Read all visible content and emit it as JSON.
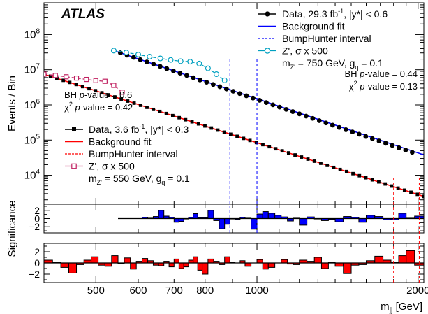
{
  "experiment_label": "ATLAS",
  "colors": {
    "high_mass": "#0000ff",
    "high_mass_signal": "#00a0c0",
    "low_mass": "#ff0000",
    "low_mass_signal": "#c02060",
    "significance_blue": "#0000ff",
    "significance_red": "#ff0000"
  },
  "chart_data": {
    "type": "scatter",
    "xlabel": "m_jj [GeV]",
    "x_scale": "log",
    "xlim": [
      400,
      2050
    ],
    "x_ticks": [
      500,
      600,
      700,
      800,
      900,
      1000,
      2000
    ],
    "x_tick_labels": [
      "500",
      "600",
      "700",
      "800",
      "",
      "1000",
      "2000"
    ],
    "main": {
      "ylabel": "Events / Bin",
      "y_scale": "log",
      "ylim": [
        1500,
        800000000
      ],
      "y_ticks": [
        10000,
        100000,
        1000000,
        10000000,
        100000000
      ],
      "y_tick_labels": [
        {
          "base": "10",
          "exp": "4"
        },
        {
          "base": "10",
          "exp": "5"
        },
        {
          "base": "10",
          "exp": "6"
        },
        {
          "base": "10",
          "exp": "7"
        },
        {
          "base": "10",
          "exp": "8"
        }
      ],
      "series": [
        {
          "name": "Data, 29.3 fb⁻¹, |y*| < 0.6",
          "kind": "data",
          "marker": "circle",
          "color": "#000000",
          "x": [
            540,
            1950
          ],
          "y": [
            35000000,
            45000
          ],
          "n_points": 46
        },
        {
          "name": "Background fit",
          "kind": "fit",
          "color": "#0000ff",
          "x": [
            540,
            2050
          ],
          "y": [
            35000000,
            38000
          ]
        },
        {
          "name": "BumpHunter interval",
          "kind": "interval",
          "color": "#0000ff",
          "x": [
            890,
            1000
          ]
        },
        {
          "name": "Z', σ x 500",
          "kind": "signal",
          "marker": "open-circle",
          "color": "#00a0c0",
          "x": [
            540,
            570,
            600,
            630,
            660,
            690,
            720,
            750,
            780,
            810,
            840,
            870
          ],
          "y": [
            35000000,
            31000000,
            27000000,
            23500000,
            21000000,
            19000000,
            17500000,
            17000000,
            15000000,
            11000000,
            7500000,
            5000000
          ]
        },
        {
          "name": "Data, 3.6 fb⁻¹, |y*| < 0.3",
          "kind": "data",
          "marker": "square",
          "color": "#000000",
          "x": [
            400,
            2050
          ],
          "y": [
            7500000,
            2500
          ],
          "n_points": 60
        },
        {
          "name": "Background fit",
          "kind": "fit",
          "color": "#ff0000",
          "x": [
            400,
            2050
          ],
          "y": [
            7500000,
            2500
          ]
        },
        {
          "name": "BumpHunter interval",
          "kind": "interval",
          "color": "#ff0000",
          "x": [
            1800,
            2010
          ]
        },
        {
          "name": "Z', σ x 500",
          "kind": "signal",
          "marker": "open-square",
          "color": "#c02060",
          "x": [
            400,
            420,
            440,
            460,
            480,
            500,
            520,
            540,
            560
          ],
          "y": [
            7500000,
            6900000,
            6300000,
            5800000,
            5300000,
            4900000,
            4700000,
            3600000,
            2300000
          ]
        }
      ],
      "legends": [
        {
          "position": "top-right",
          "entries": [
            {
              "style": "data-circle",
              "color": "#000000",
              "text": "Data, 29.3 fb",
              "sup": "-1",
              "after": ", |y*| < 0.6"
            },
            {
              "style": "line",
              "color": "#0000ff",
              "text": "Background fit"
            },
            {
              "style": "dashed",
              "color": "#0000ff",
              "text": "BumpHunter interval"
            },
            {
              "style": "open-circle",
              "color": "#00a0c0",
              "text": "Z', σ x 500"
            },
            {
              "style": "none",
              "text": "m",
              "sub": "Z'",
              "after": " = 750 GeV, g",
              "sub2": "q",
              "after2": " = 0.1"
            }
          ],
          "pvalues": {
            "bh": "= 0.44",
            "chi2": "= 0.13"
          }
        },
        {
          "position": "bottom-left",
          "entries": [
            {
              "style": "data-square",
              "color": "#000000",
              "text": "Data, 3.6 fb",
              "sup": "-1",
              "after": ", |y*| < 0.3"
            },
            {
              "style": "line",
              "color": "#ff0000",
              "text": "Background fit"
            },
            {
              "style": "dashed",
              "color": "#ff0000",
              "text": "BumpHunter interval"
            },
            {
              "style": "open-square",
              "color": "#c02060",
              "text": "Z', σ x 500"
            },
            {
              "style": "none",
              "text": "m",
              "sub": "Z'",
              "after": " = 550 GeV, g",
              "sub2": "q",
              "after2": " = 0.1"
            }
          ],
          "pvalues": {
            "bh": "= 0.6",
            "chi2": "= 0.42"
          }
        }
      ],
      "pvalue_words": {
        "bh": "BH",
        "p": "p",
        "suffix": "-value",
        "chi": "χ",
        "two": "2"
      }
    },
    "significance": {
      "ylabel": "Significance",
      "ylim": [
        -3.5,
        3.5
      ],
      "y_ticks": [
        -2,
        0,
        2
      ],
      "y_tick_labels": [
        "−2",
        "0",
        "2"
      ],
      "high_mass": {
        "color": "#0000ff",
        "edges": [
          550,
          565,
          580,
          595,
          610,
          625,
          640,
          655,
          670,
          685,
          700,
          715,
          730,
          745,
          760,
          775,
          790,
          810,
          830,
          850,
          870,
          890,
          910,
          930,
          950,
          975,
          1000,
          1025,
          1050,
          1080,
          1110,
          1140,
          1170,
          1200,
          1240,
          1280,
          1320,
          1360,
          1400,
          1450,
          1500,
          1550,
          1600,
          1660,
          1720,
          1780,
          1840,
          1900,
          1970,
          2050
        ],
        "values": [
          0,
          0,
          0,
          0,
          0.3,
          0.1,
          0.5,
          2.0,
          0.6,
          0.3,
          -0.9,
          -0.7,
          -0.1,
          0.3,
          1.2,
          0.2,
          0.2,
          2.0,
          -0.5,
          -2.5,
          -1.4,
          -0.1,
          -0.2,
          0.3,
          0.1,
          -2.6,
          1.1,
          1.7,
          1.3,
          0.8,
          0.4,
          -0.6,
          0.1,
          -1.6,
          0.4,
          -0.1,
          -0.5,
          -0.2,
          -0.8,
          0.5,
          0.3,
          -0.9,
          0.8,
          0.5,
          -0.3,
          -0.3,
          1.3,
          0.1,
          0.6
        ]
      },
      "low_mass": {
        "color": "#ff0000",
        "edges": [
          400,
          415,
          430,
          445,
          460,
          475,
          490,
          505,
          520,
          535,
          550,
          565,
          580,
          595,
          610,
          625,
          640,
          655,
          670,
          685,
          700,
          715,
          730,
          745,
          760,
          775,
          790,
          810,
          830,
          850,
          870,
          890,
          910,
          930,
          950,
          975,
          1000,
          1025,
          1050,
          1080,
          1110,
          1140,
          1170,
          1200,
          1240,
          1280,
          1320,
          1360,
          1400,
          1450,
          1500,
          1550,
          1600,
          1660,
          1720,
          1780,
          1840,
          1900,
          1970,
          2050
        ],
        "values": [
          0.5,
          0.1,
          -0.8,
          -1.8,
          -0.3,
          0.5,
          1.1,
          -0.4,
          -0.6,
          1.3,
          -0.1,
          0.9,
          -1.1,
          0.3,
          0.8,
          0.4,
          -0.4,
          -0.5,
          0.3,
          -0.7,
          0.7,
          -1.0,
          -0.7,
          0.5,
          1.1,
          -1.3,
          -2.0,
          0.7,
          0.3,
          -0.3,
          1.1,
          0.1,
          0.0,
          0.4,
          -0.6,
          0.0,
          0.6,
          -1.1,
          -0.8,
          0.0,
          0.6,
          -0.2,
          -0.3,
          0.5,
          0.3,
          1.0,
          -1.0,
          0.1,
          -0.6,
          -1.9,
          -0.4,
          -0.3,
          0.4,
          1.2,
          0.5,
          0.1,
          1.3,
          2.2,
          -0.4
        ]
      }
    }
  }
}
